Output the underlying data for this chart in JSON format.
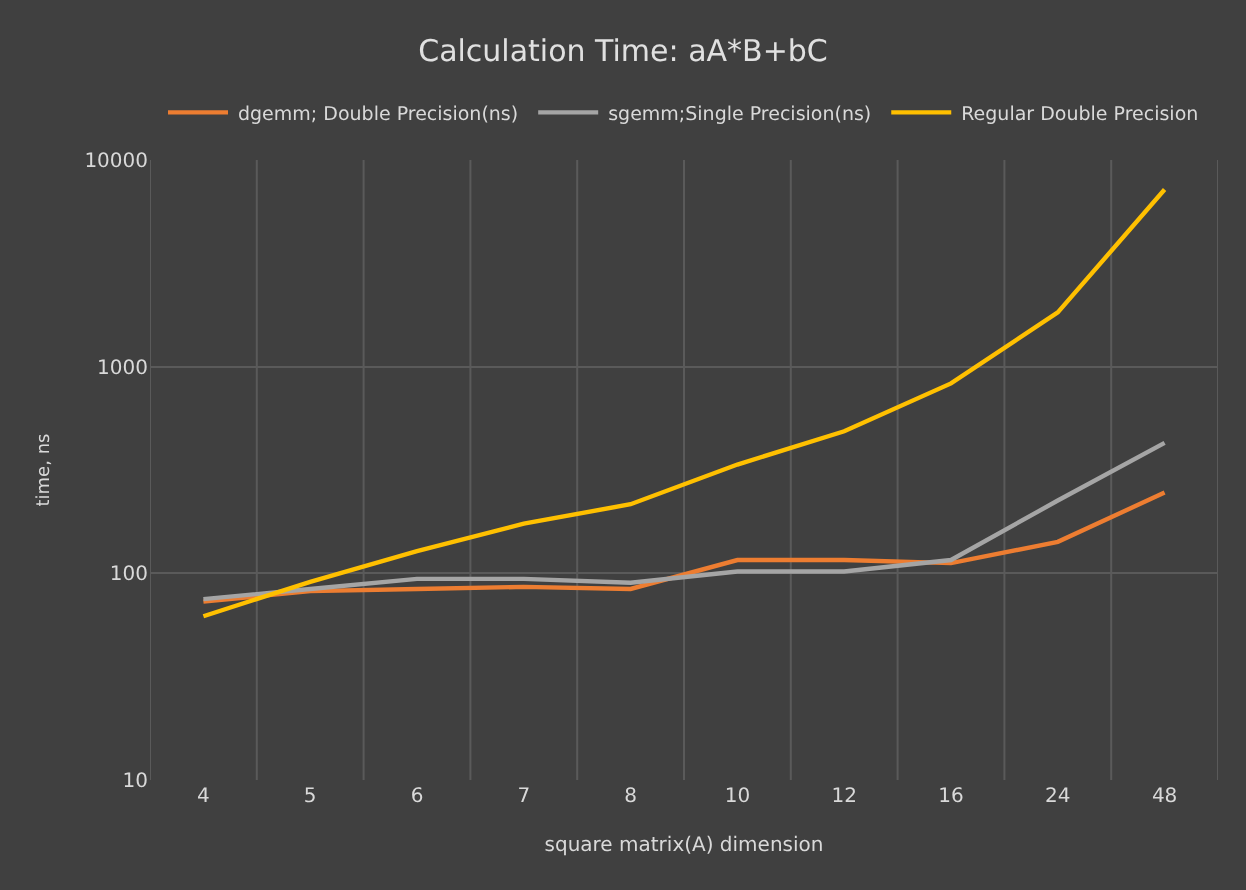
{
  "chart_data": {
    "type": "line",
    "title": "Calculation Time: aA*B+bC",
    "xlabel": "square matrix(A) dimension",
    "ylabel": "time, ns",
    "categories": [
      "4",
      "5",
      "6",
      "7",
      "8",
      "10",
      "12",
      "16",
      "24",
      "48"
    ],
    "series": [
      {
        "name": "dgemm; Double Precision(ns)",
        "color": "#ed7d31",
        "values": [
          73,
          82,
          84,
          86,
          84,
          116,
          116,
          112,
          142,
          246
        ]
      },
      {
        "name": "sgemm;Single Precision(ns)",
        "color": "#a5a5a5",
        "values": [
          75,
          84,
          94,
          94,
          90,
          102,
          102,
          116,
          225,
          428
        ]
      },
      {
        "name": "Regular Double Precision",
        "color": "#ffc000",
        "values": [
          62,
          91,
          128,
          174,
          216,
          336,
          487,
          830,
          1830,
          7200
        ]
      }
    ],
    "log": "y",
    "ylim": [
      10,
      10000
    ],
    "yticks": [
      10,
      100,
      1000,
      10000
    ],
    "grid": true,
    "legend": "top",
    "marker": "none",
    "line_style": "solid"
  }
}
